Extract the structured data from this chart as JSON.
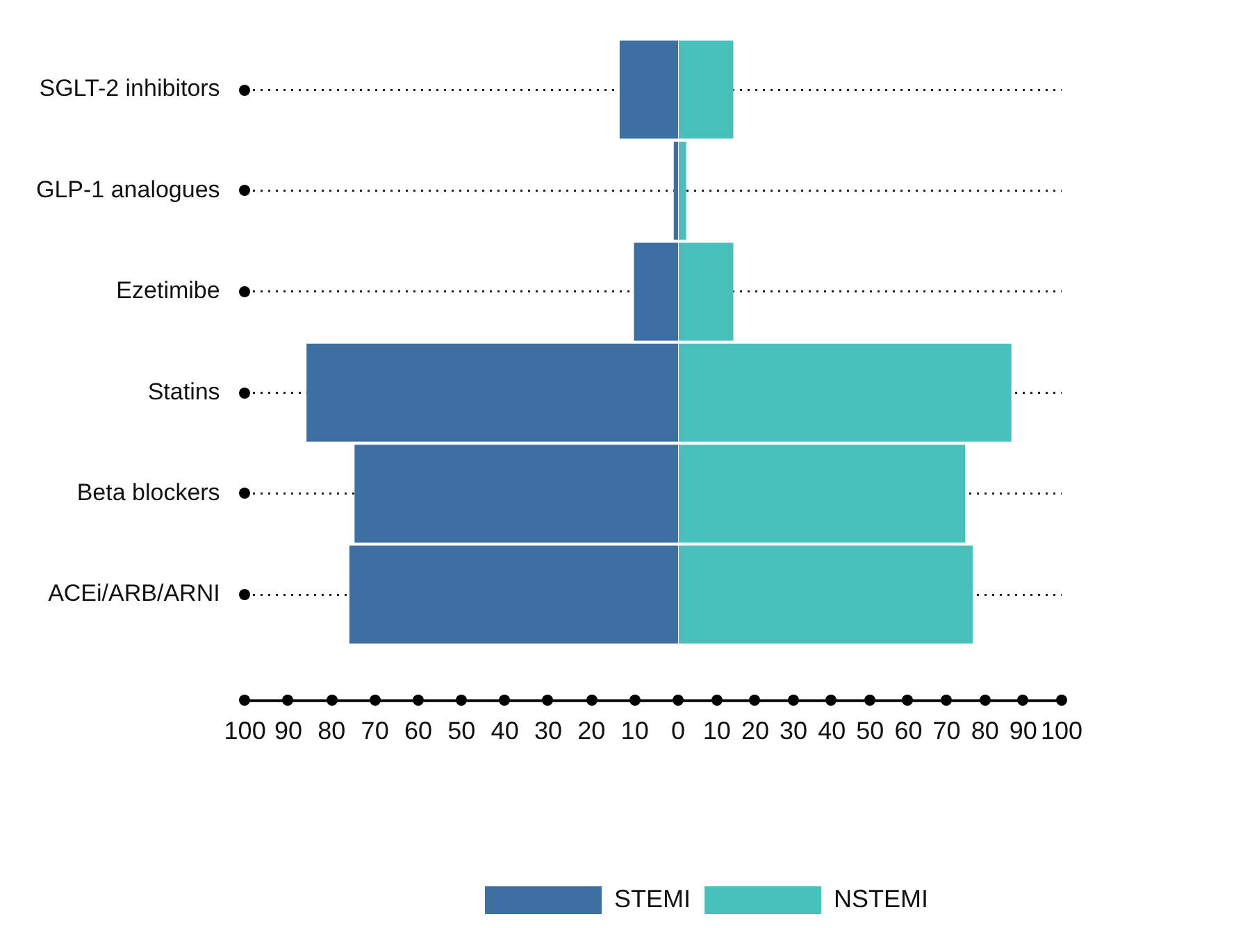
{
  "chart_data": [
    {
      "type": "bar",
      "orientation": "horizontal",
      "categories": [
        "SGLT-2 inhibitors",
        "GLP-1 analogues",
        "Ezetimibe",
        "Statins",
        "Beta blockers",
        "ACEi/ARB/ARNI"
      ],
      "series": [
        {
          "name": "STEMI",
          "color": "#3e6fa3",
          "values": [
            13.5,
            1,
            10.2,
            85.8,
            74.7,
            75.9
          ]
        }
      ],
      "xlim": [
        100,
        0
      ],
      "xticks": [
        100,
        90,
        80,
        70,
        60,
        50,
        40,
        30,
        20,
        10,
        0
      ],
      "grid": "y",
      "legend": "bottom"
    },
    {
      "type": "bar",
      "orientation": "horizontal",
      "categories": [
        null,
        null,
        null,
        null,
        null,
        null
      ],
      "series": [
        {
          "name": "NSTEMI",
          "color": "#48c1bc",
          "values": [
            14.3,
            2,
            14.3,
            86.9,
            74.8,
            76.8
          ]
        }
      ],
      "xlim": [
        0,
        100
      ],
      "xticks": [
        10,
        20,
        30,
        40,
        50,
        60,
        70,
        80,
        90,
        100
      ],
      "grid": "y",
      "legend": "bottom"
    }
  ]
}
